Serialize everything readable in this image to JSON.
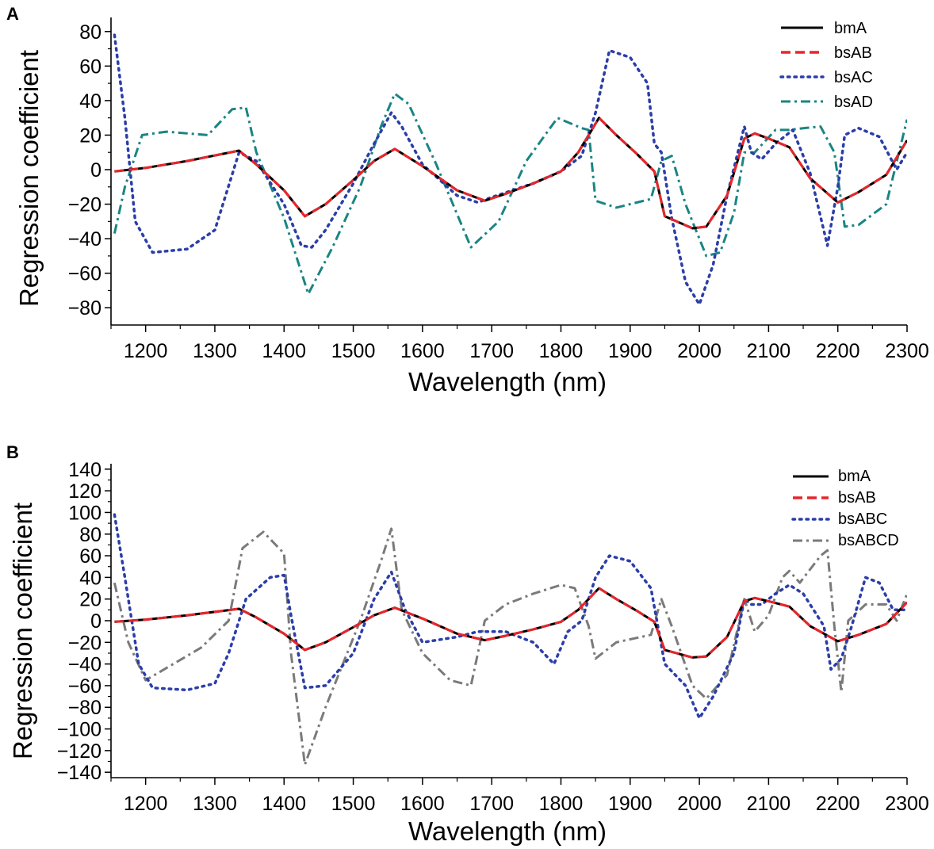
{
  "chart_data": [
    {
      "type": "line",
      "panel_label": "A",
      "xlabel": "Wavelength (nm)",
      "ylabel": "Regression coefficient",
      "xlim": [
        1150,
        2300
      ],
      "ylim": [
        -90,
        90
      ],
      "xticks": [
        1200,
        1300,
        1400,
        1500,
        1600,
        1700,
        1800,
        1900,
        2000,
        2100,
        2200,
        2300
      ],
      "yticks": [
        80,
        60,
        40,
        20,
        0,
        -20,
        -40,
        -60,
        -80
      ],
      "legend_position": "top-right",
      "series": [
        {
          "name": "bmA",
          "color": "#000000",
          "style": "solid",
          "x": [
            1155,
            1200,
            1260,
            1310,
            1335,
            1360,
            1400,
            1430,
            1460,
            1500,
            1530,
            1560,
            1600,
            1650,
            1690,
            1720,
            1760,
            1800,
            1825,
            1855,
            1880,
            1910,
            1935,
            1950,
            1990,
            2010,
            2040,
            2065,
            2080,
            2100,
            2130,
            2160,
            2200,
            2230,
            2270,
            2300
          ],
          "y": [
            -1,
            1,
            5,
            9,
            11,
            3,
            -12,
            -27,
            -20,
            -6,
            5,
            12,
            2,
            -12,
            -18,
            -14,
            -8,
            -1,
            10,
            30,
            20,
            9,
            -1,
            -27,
            -34,
            -33,
            -15,
            18,
            21,
            18,
            13,
            -5,
            -19,
            -13,
            -3,
            17
          ]
        },
        {
          "name": "bsAB",
          "color": "#e8262b",
          "style": "dash",
          "x": [
            1155,
            1200,
            1260,
            1310,
            1335,
            1360,
            1400,
            1430,
            1460,
            1500,
            1530,
            1560,
            1600,
            1650,
            1690,
            1720,
            1760,
            1800,
            1825,
            1855,
            1880,
            1910,
            1935,
            1950,
            1990,
            2010,
            2040,
            2065,
            2080,
            2100,
            2130,
            2160,
            2200,
            2230,
            2270,
            2300
          ],
          "y": [
            -1,
            1,
            5,
            9,
            11,
            3,
            -12,
            -27,
            -20,
            -6,
            5,
            12,
            2,
            -12,
            -18,
            -14,
            -8,
            -1,
            10,
            30,
            20,
            9,
            -1,
            -27,
            -34,
            -33,
            -15,
            18,
            21,
            18,
            13,
            -5,
            -19,
            -13,
            -3,
            17
          ]
        },
        {
          "name": "bsAC",
          "color": "#2b3ea8",
          "style": "dot",
          "x": [
            1155,
            1170,
            1185,
            1210,
            1260,
            1300,
            1335,
            1360,
            1400,
            1425,
            1440,
            1460,
            1500,
            1530,
            1555,
            1570,
            1600,
            1650,
            1680,
            1700,
            1760,
            1800,
            1830,
            1850,
            1870,
            1900,
            1925,
            1935,
            1945,
            1960,
            1980,
            2000,
            2020,
            2040,
            2065,
            2075,
            2090,
            2110,
            2135,
            2160,
            2185,
            2200,
            2210,
            2230,
            2260,
            2285,
            2300
          ],
          "y": [
            78,
            30,
            -30,
            -48,
            -46,
            -35,
            10,
            5,
            -20,
            -44,
            -45,
            -35,
            -8,
            15,
            33,
            25,
            3,
            -15,
            -19,
            -16,
            -8,
            -1,
            8,
            33,
            69,
            65,
            50,
            15,
            10,
            -28,
            -65,
            -78,
            -55,
            -15,
            25,
            10,
            6,
            15,
            23,
            -2,
            -44,
            -10,
            20,
            24,
            19,
            0,
            10
          ]
        },
        {
          "name": "bsAD",
          "color": "#1a8583",
          "style": "dashdot",
          "x": [
            1155,
            1170,
            1195,
            1230,
            1290,
            1325,
            1345,
            1360,
            1400,
            1435,
            1470,
            1510,
            1540,
            1560,
            1580,
            1620,
            1670,
            1710,
            1750,
            1795,
            1830,
            1840,
            1850,
            1880,
            1930,
            1945,
            1960,
            1980,
            2010,
            2030,
            2050,
            2065,
            2080,
            2110,
            2130,
            2150,
            2175,
            2195,
            2210,
            2230,
            2270,
            2300
          ],
          "y": [
            -37,
            -10,
            20,
            22,
            20,
            35,
            36,
            10,
            -28,
            -72,
            -45,
            -10,
            25,
            44,
            38,
            3,
            -45,
            -30,
            5,
            30,
            24,
            23,
            -18,
            -22,
            -17,
            5,
            8,
            -20,
            -50,
            -48,
            -25,
            10,
            10,
            23,
            23,
            24,
            25,
            10,
            -33,
            -32,
            -20,
            29
          ]
        }
      ]
    },
    {
      "type": "line",
      "panel_label": "B",
      "xlabel": "Wavelength (nm)",
      "ylabel": "Regression coefficient",
      "xlim": [
        1150,
        2300
      ],
      "ylim": [
        -145,
        145
      ],
      "xticks": [
        1200,
        1300,
        1400,
        1500,
        1600,
        1700,
        1800,
        1900,
        2000,
        2100,
        2200,
        2300
      ],
      "yticks": [
        140,
        120,
        100,
        80,
        60,
        40,
        20,
        0,
        -20,
        -40,
        -60,
        -80,
        -100,
        -120,
        -140
      ],
      "legend_position": "top-right",
      "series": [
        {
          "name": "bmA",
          "color": "#000000",
          "style": "solid",
          "x": [
            1155,
            1200,
            1260,
            1310,
            1335,
            1360,
            1400,
            1430,
            1460,
            1500,
            1530,
            1560,
            1600,
            1650,
            1690,
            1720,
            1760,
            1800,
            1825,
            1855,
            1880,
            1910,
            1935,
            1950,
            1990,
            2010,
            2040,
            2065,
            2080,
            2100,
            2130,
            2160,
            2200,
            2230,
            2270,
            2300
          ],
          "y": [
            -1,
            1,
            5,
            9,
            11,
            3,
            -12,
            -27,
            -20,
            -6,
            5,
            12,
            2,
            -12,
            -18,
            -14,
            -8,
            -1,
            10,
            30,
            20,
            9,
            -1,
            -27,
            -34,
            -33,
            -15,
            18,
            21,
            18,
            13,
            -5,
            -19,
            -13,
            -3,
            17
          ]
        },
        {
          "name": "bsAB",
          "color": "#e8262b",
          "style": "dash",
          "x": [
            1155,
            1200,
            1260,
            1310,
            1335,
            1360,
            1400,
            1430,
            1460,
            1500,
            1530,
            1560,
            1600,
            1650,
            1690,
            1720,
            1760,
            1800,
            1825,
            1855,
            1880,
            1910,
            1935,
            1950,
            1990,
            2010,
            2040,
            2065,
            2080,
            2100,
            2130,
            2160,
            2200,
            2230,
            2270,
            2300
          ],
          "y": [
            -1,
            1,
            5,
            9,
            11,
            3,
            -12,
            -27,
            -20,
            -6,
            5,
            12,
            2,
            -12,
            -18,
            -14,
            -8,
            -1,
            10,
            30,
            20,
            9,
            -1,
            -27,
            -34,
            -33,
            -15,
            18,
            21,
            18,
            13,
            -5,
            -19,
            -13,
            -3,
            17
          ]
        },
        {
          "name": "bsABC",
          "color": "#2b3ea8",
          "style": "dot",
          "x": [
            1155,
            1170,
            1190,
            1210,
            1260,
            1300,
            1320,
            1345,
            1380,
            1400,
            1410,
            1430,
            1460,
            1500,
            1530,
            1555,
            1575,
            1600,
            1650,
            1680,
            1720,
            1760,
            1790,
            1810,
            1830,
            1850,
            1870,
            1900,
            1930,
            1950,
            1980,
            2000,
            2020,
            2050,
            2065,
            2075,
            2090,
            2110,
            2130,
            2150,
            2180,
            2190,
            2205,
            2220,
            2240,
            2260,
            2280,
            2300
          ],
          "y": [
            98,
            40,
            -40,
            -62,
            -64,
            -58,
            -30,
            20,
            40,
            42,
            5,
            -62,
            -60,
            -30,
            20,
            45,
            10,
            -20,
            -15,
            -10,
            -10,
            -20,
            -40,
            -10,
            0,
            40,
            60,
            55,
            30,
            -40,
            -60,
            -90,
            -70,
            -30,
            20,
            15,
            15,
            25,
            33,
            25,
            -5,
            -45,
            -35,
            -5,
            40,
            35,
            10,
            10
          ]
        },
        {
          "name": "bsABCD",
          "color": "#7a7a7a",
          "style": "dashdot",
          "x": [
            1155,
            1175,
            1200,
            1240,
            1280,
            1320,
            1340,
            1370,
            1400,
            1410,
            1430,
            1460,
            1510,
            1540,
            1555,
            1570,
            1600,
            1640,
            1670,
            1690,
            1720,
            1760,
            1800,
            1820,
            1840,
            1850,
            1880,
            1930,
            1945,
            1960,
            1990,
            2010,
            2040,
            2065,
            2080,
            2100,
            2120,
            2130,
            2145,
            2175,
            2185,
            2195,
            2205,
            2215,
            2240,
            2270,
            2285,
            2300
          ],
          "y": [
            35,
            -20,
            -55,
            -40,
            -25,
            0,
            67,
            82,
            62,
            -30,
            -133,
            -80,
            0,
            55,
            85,
            10,
            -30,
            -55,
            -60,
            0,
            15,
            25,
            33,
            30,
            -5,
            -35,
            -20,
            -13,
            20,
            -5,
            -60,
            -72,
            -50,
            20,
            -10,
            5,
            40,
            46,
            35,
            60,
            65,
            -5,
            -66,
            0,
            15,
            15,
            0,
            25
          ]
        }
      ]
    }
  ]
}
